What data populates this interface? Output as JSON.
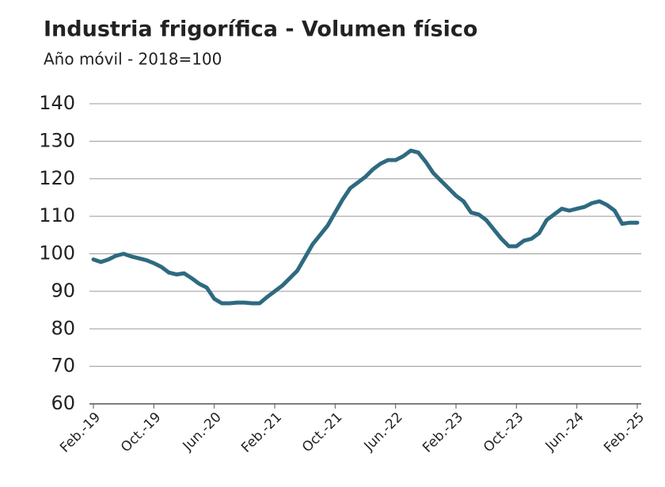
{
  "chart_data": {
    "type": "line",
    "title": "Industria frigorífica - Volumen físico",
    "subtitle": "Año móvil - 2018=100",
    "categories": [
      "Feb.-19",
      null,
      null,
      null,
      null,
      null,
      null,
      null,
      "Oct.-19",
      null,
      null,
      null,
      null,
      null,
      null,
      null,
      "Jun.-20",
      null,
      null,
      null,
      null,
      null,
      null,
      null,
      "Feb.-21",
      null,
      null,
      null,
      null,
      null,
      null,
      null,
      "Oct.-21",
      null,
      null,
      null,
      null,
      null,
      null,
      null,
      "Jun.-22",
      null,
      null,
      null,
      null,
      null,
      null,
      null,
      "Feb.-23",
      null,
      null,
      null,
      null,
      null,
      null,
      null,
      "Oct.-23",
      null,
      null,
      null,
      null,
      null,
      null,
      null,
      "Jun.-24",
      null,
      null,
      null,
      null,
      null,
      null,
      null,
      "Feb.-25"
    ],
    "series": [
      {
        "color": "#2e6a80",
        "values": [
          98.5,
          97.8,
          98.5,
          99.5,
          100,
          99.3,
          98.8,
          98.3,
          97.5,
          96.5,
          95,
          94.5,
          94.8,
          93.5,
          92,
          91,
          88,
          86.8,
          86.8,
          87,
          87,
          86.8,
          86.8,
          88.5,
          90,
          91.5,
          93.5,
          95.5,
          99,
          102.5,
          105,
          107.5,
          111,
          114.5,
          117.5,
          119,
          120.5,
          122.5,
          124,
          125,
          125,
          126,
          127.5,
          127,
          124.5,
          121.5,
          119.5,
          117.5,
          115.5,
          114,
          111,
          110.5,
          109,
          106.5,
          104,
          102,
          102,
          103.5,
          104,
          105.5,
          109,
          110.5,
          112,
          111.5,
          112,
          112.5,
          113.5,
          114,
          113,
          111.5,
          108,
          108.3,
          108.3
        ]
      }
    ],
    "ylim": [
      60,
      140
    ],
    "yticks": [
      60,
      70,
      80,
      90,
      100,
      110,
      120,
      130,
      140
    ],
    "grid": true
  }
}
